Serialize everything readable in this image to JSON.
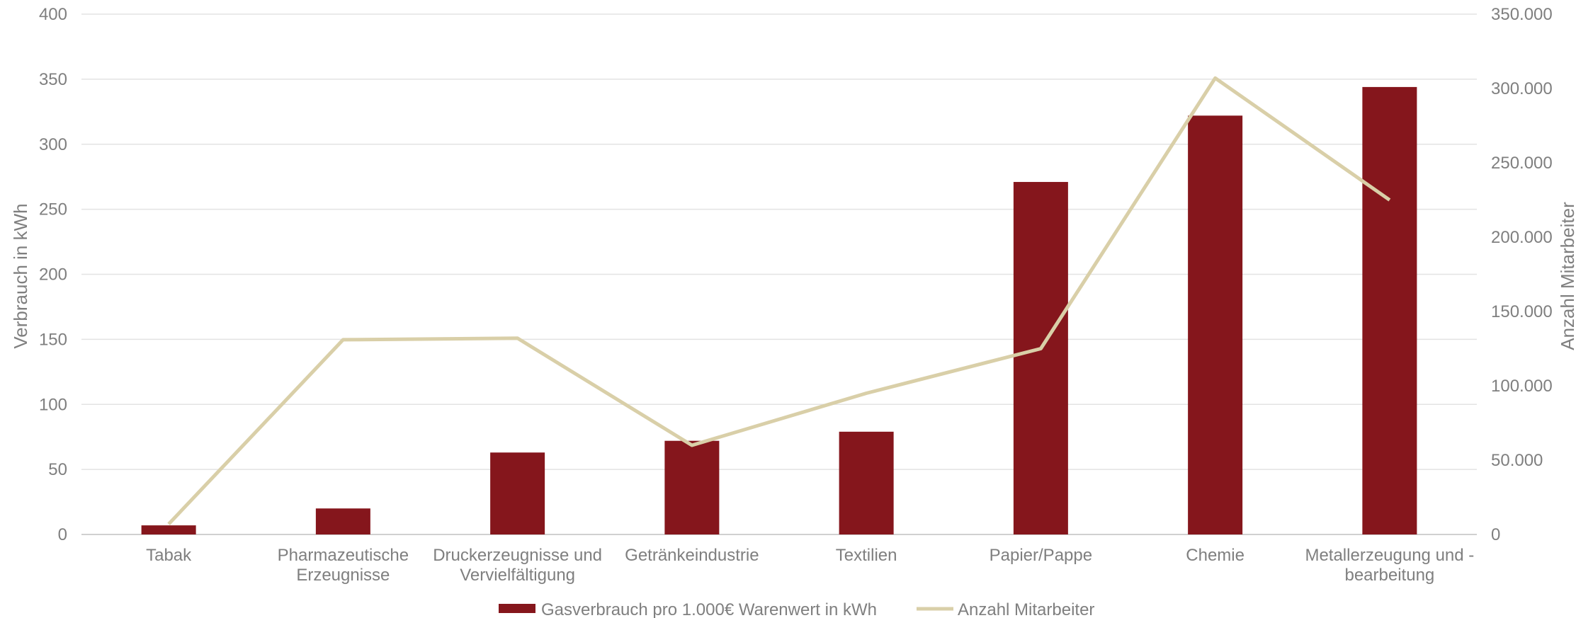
{
  "chart_data": {
    "type": "bar",
    "categories": [
      [
        "Tabak"
      ],
      [
        "Pharmazeutische",
        "Erzeugnisse"
      ],
      [
        "Druckerzeugnisse und",
        "Vervielfältigung"
      ],
      [
        "Getränkeindustrie"
      ],
      [
        "Textilien"
      ],
      [
        "Papier/Pappe"
      ],
      [
        "Chemie"
      ],
      [
        "Metallerzeugung und -",
        "bearbeitung"
      ]
    ],
    "series": [
      {
        "name": "Gasverbrauch pro 1.000€ Warenwert in kWh",
        "type": "bar",
        "axis": "left",
        "color": "#85161c",
        "values": [
          7,
          20,
          63,
          72,
          79,
          271,
          322,
          344
        ]
      },
      {
        "name": "Anzahl Mitarbeiter",
        "type": "line",
        "axis": "right",
        "color": "#d9cfa8",
        "values": [
          7000,
          131000,
          132000,
          60000,
          95000,
          125000,
          307000,
          225000
        ]
      }
    ],
    "ylabel": "Verbrauch in kWh",
    "y2label": "Anzahl Mitarbeiter",
    "ylim": [
      0,
      400
    ],
    "yticks": [
      "0",
      "50",
      "100",
      "150",
      "200",
      "250",
      "300",
      "350",
      "400"
    ],
    "y2lim": [
      0,
      350000
    ],
    "y2ticks": [
      "0",
      "50.000",
      "100.000",
      "150.000",
      "200.000",
      "250.000",
      "300.000",
      "350.000"
    ],
    "grid": true,
    "legend": "bottom-center"
  }
}
